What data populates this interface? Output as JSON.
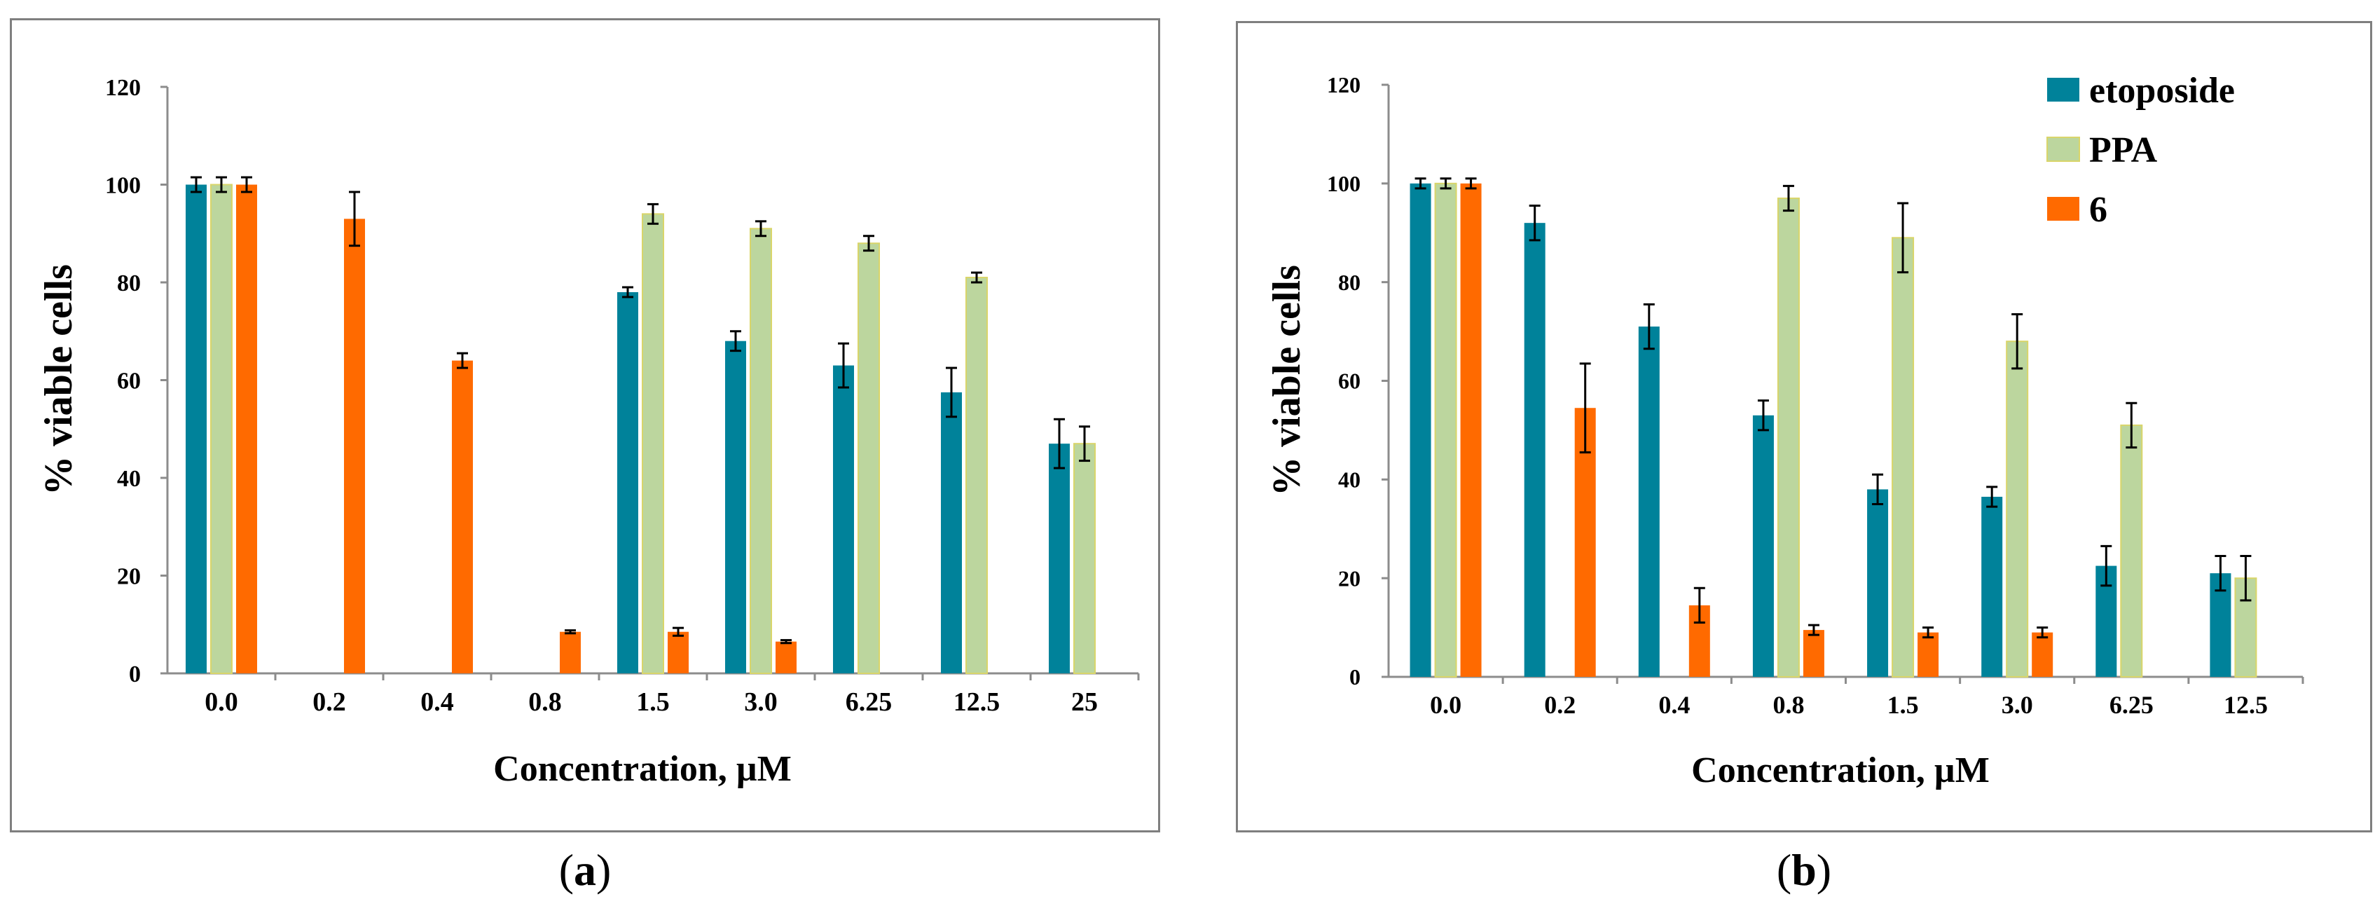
{
  "colors": {
    "etoposide": "#00829a",
    "PPA": "#bcd69e",
    "PPA_stroke": "#d9d56a",
    "compound6": "#ff6a00"
  },
  "legend": [
    "etoposide",
    "PPA",
    "6"
  ],
  "captions": {
    "a_open": "(",
    "a_letter": "a",
    "a_close": ")",
    "b_open": "(",
    "b_letter": "b",
    "b_close": ")"
  },
  "chart_data": [
    {
      "type": "bar",
      "panel": "a",
      "xlabel": "Concentration, µM",
      "ylabel": "% viable cells",
      "ylim": [
        0,
        120
      ],
      "yticks": [
        0,
        20,
        40,
        60,
        80,
        100,
        120
      ],
      "grid": false,
      "legend_placement": "none",
      "categories": [
        "0.0",
        "0.2",
        "0.4",
        "0.8",
        "1.5",
        "3.0",
        "6.25",
        "12.5",
        "25"
      ],
      "series": [
        {
          "name": "etoposide",
          "values": [
            100,
            null,
            null,
            null,
            78,
            68,
            63,
            57.5,
            47
          ],
          "errors": [
            1.5,
            null,
            null,
            null,
            1,
            2,
            4.5,
            5,
            5
          ]
        },
        {
          "name": "PPA",
          "values": [
            100,
            null,
            null,
            null,
            94,
            91,
            88,
            81,
            47
          ],
          "errors": [
            1.5,
            null,
            null,
            null,
            2,
            1.5,
            1.5,
            1,
            3.5
          ]
        },
        {
          "name": "6",
          "values": [
            100,
            93,
            64,
            8.5,
            8.5,
            6.5,
            null,
            null,
            null
          ],
          "errors": [
            1.5,
            5.5,
            1.5,
            0.3,
            0.8,
            0.3,
            null,
            null,
            null
          ]
        }
      ]
    },
    {
      "type": "bar",
      "panel": "b",
      "xlabel": "Concentration, µM",
      "ylabel": "% viable cells",
      "ylim": [
        0,
        120
      ],
      "yticks": [
        0,
        20,
        40,
        60,
        80,
        100,
        120
      ],
      "grid": false,
      "legend_placement": "top-right",
      "categories": [
        "0.0",
        "0.2",
        "0.4",
        "0.8",
        "1.5",
        "3.0",
        "6.25",
        "12.5"
      ],
      "series": [
        {
          "name": "etoposide",
          "values": [
            100,
            92,
            71,
            53,
            38,
            36.5,
            22.5,
            21
          ],
          "errors": [
            1,
            3.5,
            4.5,
            3,
            3,
            2,
            4,
            3.5
          ]
        },
        {
          "name": "PPA",
          "values": [
            100,
            null,
            null,
            97,
            89,
            68,
            51,
            20
          ],
          "errors": [
            1,
            null,
            null,
            2.5,
            7,
            5.5,
            4.5,
            4.5
          ]
        },
        {
          "name": "6",
          "values": [
            100,
            54.5,
            14.5,
            9.5,
            9,
            9,
            null,
            null
          ],
          "errors": [
            1,
            9,
            3.5,
            1,
            1,
            1,
            null,
            null
          ]
        }
      ]
    }
  ]
}
